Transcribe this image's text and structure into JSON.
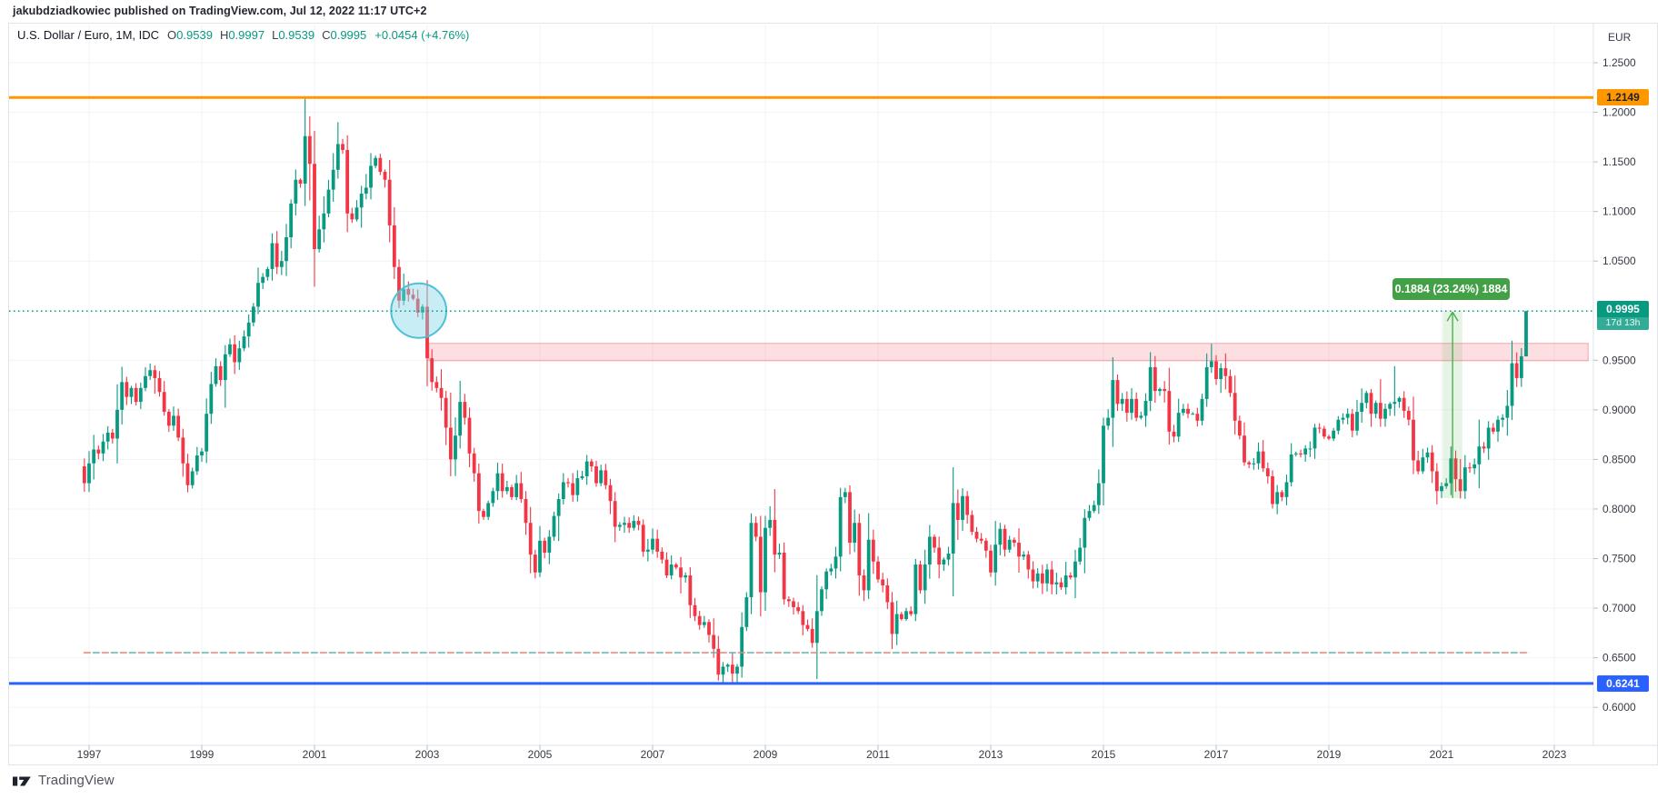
{
  "publish_bar": {
    "text": "jakubdziadkowiec published on TradingView.com, Jul 12, 2022 11:17 UTC+2"
  },
  "legend": {
    "symbol": "U.S. Dollar / Euro, 1M, IDC",
    "ohlc": [
      {
        "label": "O",
        "value": "0.9539"
      },
      {
        "label": "H",
        "value": "0.9997"
      },
      {
        "label": "L",
        "value": "0.9539"
      },
      {
        "label": "C",
        "value": "0.9995"
      }
    ],
    "change": "+0.0454 (+4.76%)",
    "value_color": "#089981"
  },
  "axis": {
    "currency_label": "EUR",
    "price_ticks": [
      {
        "label": "1.2500",
        "value": 1.25
      },
      {
        "label": "1.2000",
        "value": 1.2
      },
      {
        "label": "1.1500",
        "value": 1.15
      },
      {
        "label": "1.1000",
        "value": 1.1
      },
      {
        "label": "1.0500",
        "value": 1.05
      },
      {
        "label": "0.9500",
        "value": 0.95
      },
      {
        "label": "0.9000",
        "value": 0.9
      },
      {
        "label": "0.8500",
        "value": 0.85
      },
      {
        "label": "0.8000",
        "value": 0.8
      },
      {
        "label": "0.7500",
        "value": 0.75
      },
      {
        "label": "0.7000",
        "value": 0.7
      },
      {
        "label": "0.6500",
        "value": 0.65
      },
      {
        "label": "0.6000",
        "value": 0.6
      }
    ],
    "gridline_prices": [
      1.25,
      1.2,
      1.15,
      1.1,
      1.05,
      1.0,
      0.95,
      0.9,
      0.85,
      0.8,
      0.75,
      0.7,
      0.65,
      0.6
    ],
    "year_ticks": [
      {
        "label": "1997",
        "value": 1997
      },
      {
        "label": "1999",
        "value": 1999
      },
      {
        "label": "2001",
        "value": 2001
      },
      {
        "label": "2003",
        "value": 2003
      },
      {
        "label": "2005",
        "value": 2005
      },
      {
        "label": "2007",
        "value": 2007
      },
      {
        "label": "2009",
        "value": 2009
      },
      {
        "label": "2011",
        "value": 2011
      },
      {
        "label": "2013",
        "value": 2013
      },
      {
        "label": "2015",
        "value": 2015
      },
      {
        "label": "2017",
        "value": 2017
      },
      {
        "label": "2019",
        "value": 2019
      },
      {
        "label": "2021",
        "value": 2021
      },
      {
        "label": "2023",
        "value": 2023
      }
    ]
  },
  "badges": {
    "orange_level": {
      "text": "1.2149",
      "color": "#ff9800"
    },
    "blue_level": {
      "text": "0.6241",
      "color": "#2962ff"
    },
    "current_price": {
      "text": "0.9995",
      "countdown": "17d 13h",
      "color": "#089981"
    }
  },
  "annotations": {
    "orange_line": {
      "price": 1.2149,
      "color": "#ff9800"
    },
    "blue_line": {
      "price": 0.6241,
      "color": "#2962ff"
    },
    "current_price_line": {
      "price": 0.9995,
      "color": "#089981"
    },
    "dashed_bicolor_line": {
      "price": 0.6551,
      "t_start": 1996.9,
      "t_end": 2022.55,
      "colors": [
        "#ef8277",
        "#5cb8b2"
      ]
    },
    "resistance_zone": {
      "price_top": 0.967,
      "price_bottom": 0.9495,
      "t_start": 2003.03,
      "t_end": 2023.6,
      "color": "#f23645",
      "fill_opacity": 0.16,
      "stroke_opacity": 0.42
    },
    "parity_circle": {
      "t_center": 2002.85,
      "price_center": 1.0,
      "radius_years": 0.49,
      "radius_price": 0.0275,
      "stroke": "#4cc0d6",
      "fill": "rgba(134,214,230,0.45)"
    },
    "price_range_measure": {
      "t_start": 2021.02,
      "t_end": 2021.37,
      "price_start": 0.8111,
      "price_end": 0.9995,
      "label": "0.1884 (23.24%) 1884",
      "color": "#4caf50",
      "fill_opacity": 0.14,
      "label_bg": "#43a047"
    }
  },
  "footer": {
    "brand": "TradingView"
  },
  "chart_data": {
    "type": "candlestick",
    "title": "U.S. Dollar / Euro",
    "timeframe": "1M",
    "exchange": "IDC",
    "currency": "EUR",
    "legend_position": "top-left",
    "grid": true,
    "x_range_years": [
      1996.9,
      2023.6
    ],
    "y_range": [
      0.5616,
      1.2876
    ],
    "y_tick_step": 0.05,
    "up_color": "#089981",
    "down_color": "#f23645",
    "last_candle": {
      "time": "Jul 2022",
      "open": 0.9539,
      "high": 0.9997,
      "low": 0.9539,
      "close": 0.9995
    },
    "start_t": 1996.9167,
    "step_months": 1,
    "first_open": 0.843,
    "closes": [
      0.826,
      0.846,
      0.86,
      0.856,
      0.868,
      0.877,
      0.871,
      0.9,
      0.928,
      0.913,
      0.922,
      0.908,
      0.922,
      0.934,
      0.94,
      0.932,
      0.918,
      0.898,
      0.884,
      0.894,
      0.872,
      0.846,
      0.824,
      0.838,
      0.854,
      0.858,
      0.896,
      0.926,
      0.944,
      0.93,
      0.956,
      0.966,
      0.948,
      0.962,
      0.974,
      0.988,
      1.004,
      1.028,
      1.034,
      1.042,
      1.068,
      1.044,
      1.05,
      1.074,
      1.108,
      1.132,
      1.128,
      1.176,
      1.148,
      1.062,
      1.082,
      1.098,
      1.122,
      1.142,
      1.168,
      1.162,
      1.098,
      1.092,
      1.104,
      1.118,
      1.124,
      1.146,
      1.154,
      1.14,
      1.132,
      1.086,
      1.044,
      1.01,
      1.022,
      1.016,
      1.012,
      0.998,
      1.004,
      0.952,
      0.928,
      0.922,
      0.912,
      0.882,
      0.85,
      0.874,
      0.908,
      0.892,
      0.856,
      0.836,
      0.798,
      0.792,
      0.806,
      0.818,
      0.836,
      0.818,
      0.822,
      0.812,
      0.826,
      0.81,
      0.786,
      0.754,
      0.736,
      0.768,
      0.756,
      0.772,
      0.793,
      0.81,
      0.827,
      0.826,
      0.814,
      0.831,
      0.833,
      0.848,
      0.843,
      0.826,
      0.839,
      0.824,
      0.808,
      0.782,
      0.784,
      0.786,
      0.781,
      0.788,
      0.784,
      0.757,
      0.759,
      0.77,
      0.757,
      0.749,
      0.733,
      0.744,
      0.741,
      0.731,
      0.733,
      0.703,
      0.692,
      0.683,
      0.686,
      0.673,
      0.659,
      0.633,
      0.641,
      0.643,
      0.634,
      0.641,
      0.681,
      0.711,
      0.786,
      0.772,
      0.716,
      0.781,
      0.789,
      0.754,
      0.756,
      0.709,
      0.707,
      0.701,
      0.697,
      0.683,
      0.679,
      0.665,
      0.697,
      0.719,
      0.737,
      0.74,
      0.752,
      0.812,
      0.817,
      0.766,
      0.786,
      0.733,
      0.718,
      0.769,
      0.747,
      0.729,
      0.723,
      0.706,
      0.674,
      0.694,
      0.689,
      0.697,
      0.694,
      0.744,
      0.718,
      0.744,
      0.772,
      0.761,
      0.744,
      0.749,
      0.755,
      0.806,
      0.789,
      0.813,
      0.794,
      0.777,
      0.77,
      0.768,
      0.758,
      0.736,
      0.764,
      0.78,
      0.759,
      0.769,
      0.766,
      0.752,
      0.754,
      0.739,
      0.727,
      0.735,
      0.725,
      0.739,
      0.724,
      0.726,
      0.721,
      0.733,
      0.731,
      0.747,
      0.761,
      0.791,
      0.798,
      0.804,
      0.826,
      0.884,
      0.892,
      0.93,
      0.906,
      0.911,
      0.897,
      0.911,
      0.892,
      0.894,
      0.909,
      0.943,
      0.919,
      0.921,
      0.919,
      0.878,
      0.873,
      0.897,
      0.901,
      0.896,
      0.896,
      0.889,
      0.911,
      0.943,
      0.949,
      0.931,
      0.942,
      0.934,
      0.917,
      0.889,
      0.874,
      0.847,
      0.845,
      0.846,
      0.858,
      0.841,
      0.833,
      0.805,
      0.817,
      0.812,
      0.827,
      0.855,
      0.856,
      0.855,
      0.861,
      0.861,
      0.882,
      0.881,
      0.873,
      0.871,
      0.879,
      0.89,
      0.892,
      0.896,
      0.879,
      0.898,
      0.907,
      0.917,
      0.896,
      0.907,
      0.891,
      0.901,
      0.906,
      0.908,
      0.912,
      0.899,
      0.89,
      0.849,
      0.838,
      0.852,
      0.857,
      0.838,
      0.818,
      0.823,
      0.826,
      0.851,
      0.83,
      0.818,
      0.842,
      0.841,
      0.845,
      0.863,
      0.861,
      0.882,
      0.878,
      0.89,
      0.892,
      0.904,
      0.947,
      0.932,
      0.954,
      0.9995
    ],
    "wick_overrides": [
      {
        "t": 2000.8333,
        "high": 1.2149
      },
      {
        "t": 2000.9167,
        "high": 1.196
      },
      {
        "t": 2001.4167,
        "high": 1.19
      },
      {
        "t": 2008.25,
        "low": 0.6241
      },
      {
        "t": 2008.5,
        "low": 0.6241
      },
      {
        "t": 2015.1667,
        "high": 0.953
      },
      {
        "t": 2016.9167,
        "high": 0.9665
      },
      {
        "t": 2020.1667,
        "high": 0.944
      },
      {
        "t": 2021.0,
        "low": 0.8111
      },
      {
        "t": 2022.5,
        "open": 0.9539,
        "high": 0.9997,
        "low": 0.9539,
        "close": 0.9995
      }
    ]
  },
  "colors": {
    "grid": "#f0f3fa",
    "axis_text": "#363a45",
    "separator": "#e0e3eb",
    "tick": "#b9bdc9",
    "up": "#089981",
    "down": "#f23645"
  }
}
